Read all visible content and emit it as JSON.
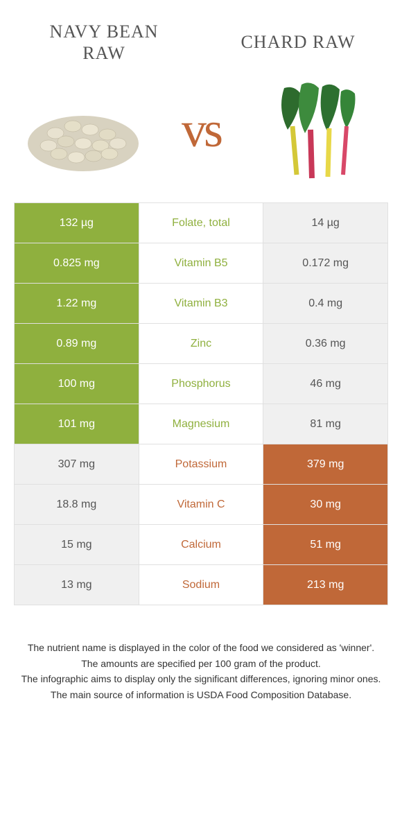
{
  "header": {
    "left_title_line1": "NAVY BEAN",
    "left_title_line2": "RAW",
    "right_title": "CHARD RAW"
  },
  "vs_label": "vs",
  "colors": {
    "left_winner_bg": "#8fb03e",
    "right_winner_bg": "#c06838",
    "loser_bg": "#f0f0f0",
    "loser_text": "#555555",
    "border": "#e0e0e0",
    "vs_color": "#c06838"
  },
  "rows": [
    {
      "left": "132 µg",
      "nutrient": "Folate, total",
      "right": "14 µg",
      "winner": "left"
    },
    {
      "left": "0.825 mg",
      "nutrient": "Vitamin B5",
      "right": "0.172 mg",
      "winner": "left"
    },
    {
      "left": "1.22 mg",
      "nutrient": "Vitamin B3",
      "right": "0.4 mg",
      "winner": "left"
    },
    {
      "left": "0.89 mg",
      "nutrient": "Zinc",
      "right": "0.36 mg",
      "winner": "left"
    },
    {
      "left": "100 mg",
      "nutrient": "Phosphorus",
      "right": "46 mg",
      "winner": "left"
    },
    {
      "left": "101 mg",
      "nutrient": "Magnesium",
      "right": "81 mg",
      "winner": "left"
    },
    {
      "left": "307 mg",
      "nutrient": "Potassium",
      "right": "379 mg",
      "winner": "right"
    },
    {
      "left": "18.8 mg",
      "nutrient": "Vitamin C",
      "right": "30 mg",
      "winner": "right"
    },
    {
      "left": "15 mg",
      "nutrient": "Calcium",
      "right": "51 mg",
      "winner": "right"
    },
    {
      "left": "13 mg",
      "nutrient": "Sodium",
      "right": "213 mg",
      "winner": "right"
    }
  ],
  "caption_lines": [
    "The nutrient name is displayed in the color of the food we considered as 'winner'.",
    "The amounts are specified per 100 gram of the product.",
    "The infographic aims to display only the significant differences, ignoring minor ones.",
    "The main source of information is USDA Food Composition Database."
  ]
}
